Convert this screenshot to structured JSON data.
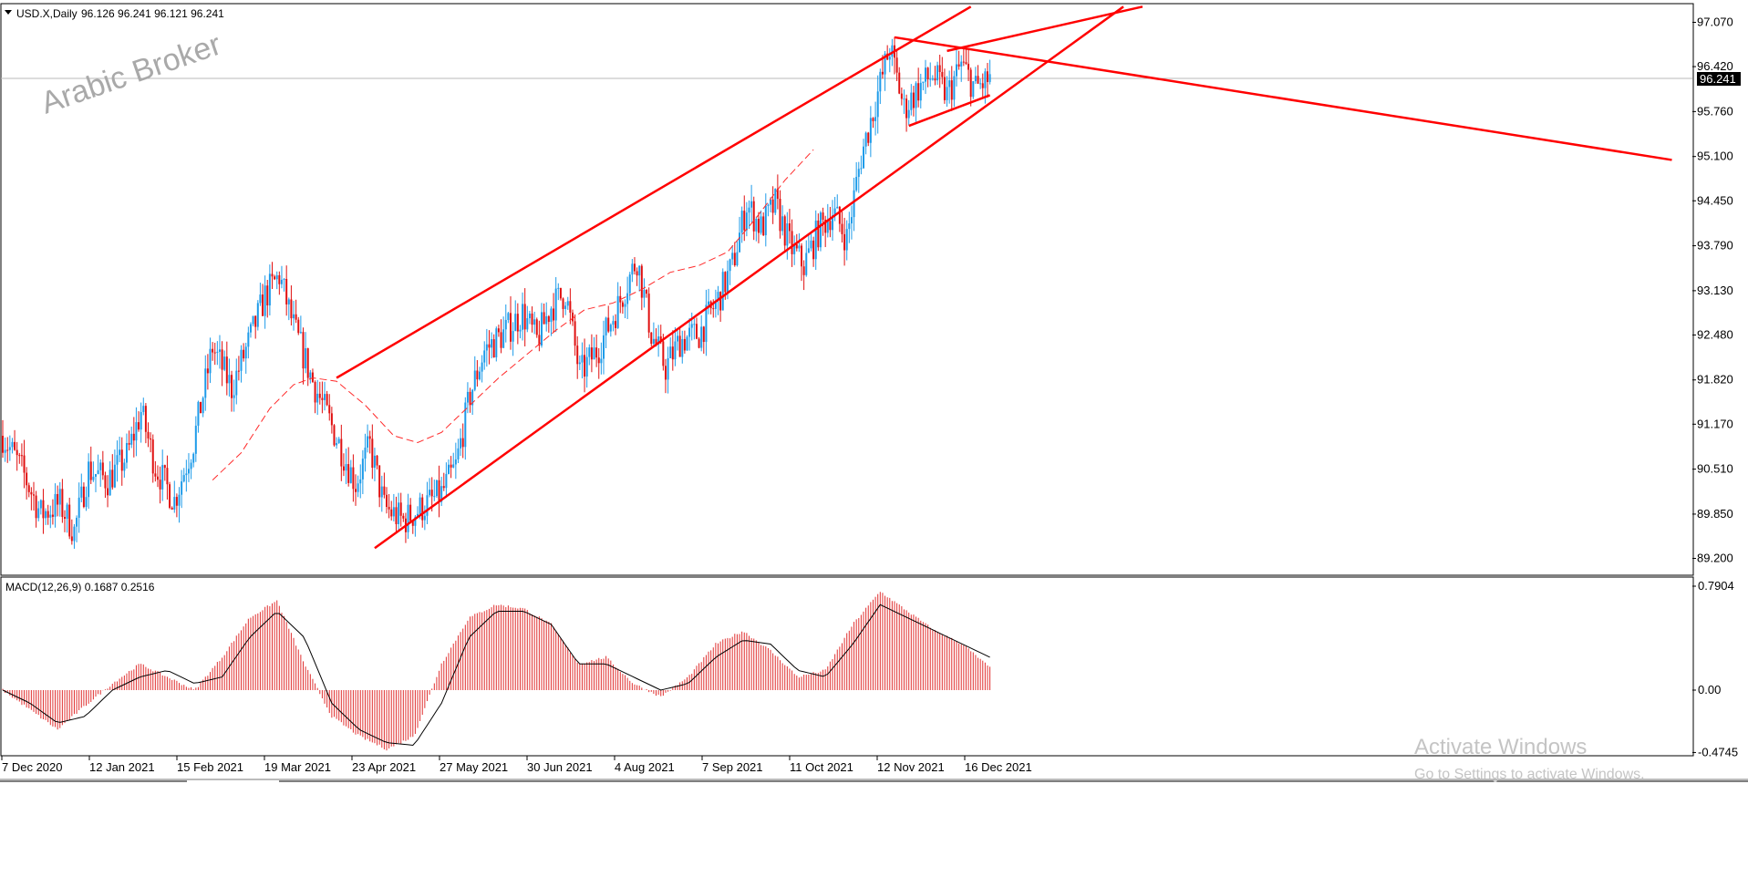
{
  "header": {
    "symbol": "USD.X,Daily",
    "ohlc": "96.126 96.241 96.121 96.241"
  },
  "watermark": "Arabic Broker",
  "activation": {
    "title": "Activate Windows",
    "subtitle": "Go to Settings to activate Windows."
  },
  "colors": {
    "bull": "#1e9be9",
    "bear": "#e01010",
    "trendline": "#ff0000",
    "ma": "#ff2a2a",
    "histogram": "#e03030",
    "signal": "#000000"
  },
  "chart_data": [
    {
      "type": "candlestick",
      "title": "USD.X,Daily",
      "y_ticks": [
        "97.070",
        "96.420",
        "95.760",
        "95.100",
        "94.450",
        "93.790",
        "93.130",
        "92.480",
        "91.820",
        "91.170",
        "90.510",
        "89.850",
        "89.200"
      ],
      "ylim": [
        89.0,
        97.2
      ],
      "last_price_label": "96.241",
      "x_ticks": [
        "7 Dec 2020",
        "12 Jan 2021",
        "15 Feb 2021",
        "19 Mar 2021",
        "23 Apr 2021",
        "27 May 2021",
        "30 Jun 2021",
        "4 Aug 2021",
        "7 Sep 2021",
        "11 Oct 2021",
        "12 Nov 2021",
        "16 Dec 2021"
      ],
      "close_path": [
        [
          0,
          91.0
        ],
        [
          8,
          90.5
        ],
        [
          16,
          89.85
        ],
        [
          24,
          90.0
        ],
        [
          30,
          89.6
        ],
        [
          36,
          90.5
        ],
        [
          44,
          90.35
        ],
        [
          52,
          90.7
        ],
        [
          58,
          91.35
        ],
        [
          64,
          90.55
        ],
        [
          72,
          90.05
        ],
        [
          80,
          90.9
        ],
        [
          88,
          92.3
        ],
        [
          96,
          91.7
        ],
        [
          104,
          92.45
        ],
        [
          110,
          93.05
        ],
        [
          116,
          93.35
        ],
        [
          122,
          92.6
        ],
        [
          130,
          91.8
        ],
        [
          136,
          91.3
        ],
        [
          142,
          90.8
        ],
        [
          148,
          90.3
        ],
        [
          154,
          90.85
        ],
        [
          160,
          89.95
        ],
        [
          168,
          89.75
        ],
        [
          176,
          89.95
        ],
        [
          184,
          90.15
        ],
        [
          190,
          90.55
        ],
        [
          196,
          91.6
        ],
        [
          202,
          92.25
        ],
        [
          210,
          92.5
        ],
        [
          218,
          92.8
        ],
        [
          224,
          92.4
        ],
        [
          230,
          92.9
        ],
        [
          236,
          93.1
        ],
        [
          242,
          91.9
        ],
        [
          250,
          92.3
        ],
        [
          258,
          92.9
        ],
        [
          266,
          93.6
        ],
        [
          272,
          92.5
        ],
        [
          278,
          92.0
        ],
        [
          284,
          92.4
        ],
        [
          292,
          92.5
        ],
        [
          300,
          93.0
        ],
        [
          306,
          93.5
        ],
        [
          312,
          94.4
        ],
        [
          318,
          94.05
        ],
        [
          324,
          94.4
        ],
        [
          330,
          93.8
        ],
        [
          336,
          93.5
        ],
        [
          342,
          94.0
        ],
        [
          348,
          94.3
        ],
        [
          354,
          93.9
        ],
        [
          360,
          95.1
        ],
        [
          366,
          95.9
        ],
        [
          372,
          96.7
        ],
        [
          378,
          95.8
        ],
        [
          384,
          96.1
        ],
        [
          390,
          96.3
        ],
        [
          396,
          96.0
        ],
        [
          402,
          96.45
        ],
        [
          408,
          96.1
        ],
        [
          414,
          96.24
        ]
      ],
      "moving_average_dashed": [
        [
          88,
          90.35
        ],
        [
          100,
          90.75
        ],
        [
          112,
          91.4
        ],
        [
          122,
          91.75
        ],
        [
          130,
          91.85
        ],
        [
          140,
          91.8
        ],
        [
          152,
          91.45
        ],
        [
          164,
          91.0
        ],
        [
          174,
          90.9
        ],
        [
          184,
          91.05
        ],
        [
          196,
          91.45
        ],
        [
          208,
          91.85
        ],
        [
          220,
          92.2
        ],
        [
          232,
          92.55
        ],
        [
          244,
          92.85
        ],
        [
          256,
          92.95
        ],
        [
          268,
          93.15
        ],
        [
          280,
          93.4
        ],
        [
          292,
          93.5
        ],
        [
          304,
          93.7
        ],
        [
          316,
          94.2
        ],
        [
          328,
          94.75
        ],
        [
          340,
          95.2
        ]
      ],
      "trendlines": [
        {
          "name": "channel-upper",
          "from": [
            140,
            91.85
          ],
          "to": [
            406,
            97.3
          ]
        },
        {
          "name": "channel-lower",
          "from": [
            156,
            89.35
          ],
          "to": [
            470,
            97.3
          ]
        },
        {
          "name": "resistance-down",
          "from": [
            374,
            96.85
          ],
          "to": [
            700,
            95.05
          ]
        },
        {
          "name": "triangle-upper",
          "from": [
            396,
            96.65
          ],
          "to": [
            478,
            97.3
          ]
        },
        {
          "name": "triangle-lower",
          "from": [
            380,
            95.55
          ],
          "to": [
            414,
            96.0
          ]
        }
      ]
    },
    {
      "type": "bar",
      "title": "MACD(12,26,9) 0.1687 0.2516",
      "series": [
        {
          "name": "MACD",
          "values": [
            0.0,
            -0.15,
            -0.3,
            -0.12,
            0.05,
            0.2,
            0.1,
            0.0,
            0.25,
            0.55,
            0.68,
            0.2,
            -0.2,
            -0.35,
            -0.45,
            -0.35,
            0.2,
            0.55,
            0.65,
            0.62,
            0.5,
            0.2,
            0.25,
            0.05,
            -0.05,
            0.1,
            0.35,
            0.45,
            0.3,
            0.1,
            0.15,
            0.5,
            0.75,
            0.6,
            0.45,
            0.35,
            0.17
          ]
        },
        {
          "name": "Signal",
          "values": [
            0.0,
            -0.1,
            -0.25,
            -0.2,
            0.0,
            0.1,
            0.15,
            0.05,
            0.1,
            0.4,
            0.6,
            0.4,
            -0.1,
            -0.3,
            -0.4,
            -0.42,
            -0.1,
            0.4,
            0.6,
            0.6,
            0.5,
            0.2,
            0.2,
            0.1,
            0.0,
            0.05,
            0.25,
            0.38,
            0.35,
            0.15,
            0.1,
            0.35,
            0.65,
            0.55,
            0.45,
            0.35,
            0.25
          ]
        }
      ],
      "y_ticks": [
        "0.7904",
        "0.00",
        "-0.4745"
      ],
      "ylim": [
        -0.55,
        0.85
      ]
    }
  ]
}
